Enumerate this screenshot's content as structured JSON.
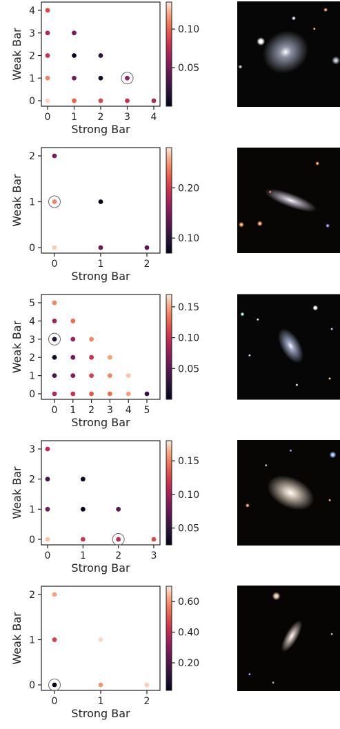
{
  "chart_data": [
    {
      "type": "scatter",
      "xlabel": "Strong Bar",
      "ylabel": "Weak Bar",
      "xlim": [
        0,
        4
      ],
      "ylim": [
        0,
        4
      ],
      "xticks": [
        "0",
        "1",
        "2",
        "3",
        "4"
      ],
      "yticks": [
        "0",
        "1",
        "2",
        "3",
        "4"
      ],
      "colorbar": {
        "min": 0.0,
        "max": 0.135,
        "ticks": [
          "0.05",
          "0.10"
        ],
        "tick_values": [
          0.05,
          0.1
        ]
      },
      "points": [
        {
          "x": 0,
          "y": 4,
          "value": 0.09
        },
        {
          "x": 0,
          "y": 3,
          "value": 0.07
        },
        {
          "x": 1,
          "y": 3,
          "value": 0.05
        },
        {
          "x": 0,
          "y": 2,
          "value": 0.08
        },
        {
          "x": 1,
          "y": 2,
          "value": 0.005
        },
        {
          "x": 2,
          "y": 2,
          "value": 0.02
        },
        {
          "x": 0,
          "y": 1,
          "value": 0.11
        },
        {
          "x": 1,
          "y": 1,
          "value": 0.05
        },
        {
          "x": 2,
          "y": 1,
          "value": 0.01
        },
        {
          "x": 3,
          "y": 1,
          "value": 0.06
        },
        {
          "x": 0,
          "y": 0,
          "value": 0.13
        },
        {
          "x": 1,
          "y": 0,
          "value": 0.1
        },
        {
          "x": 2,
          "y": 0,
          "value": 0.09
        },
        {
          "x": 3,
          "y": 0,
          "value": 0.08
        },
        {
          "x": 4,
          "y": 0,
          "value": 0.07
        }
      ],
      "highlight": {
        "x": 3,
        "y": 1
      },
      "image": {
        "bg": "#060606",
        "main_color": "#9a9eb2",
        "stars": [
          [
            0.23,
            0.38,
            6,
            "#ffffff"
          ],
          [
            0.55,
            0.16,
            3,
            "#d8e0ff"
          ],
          [
            0.86,
            0.08,
            3,
            "#ff9a80"
          ],
          [
            0.96,
            0.56,
            6,
            "#a0a6b8"
          ],
          [
            0.03,
            0.62,
            3,
            "#b8b0a0"
          ],
          [
            0.75,
            0.26,
            2,
            "#ffb080"
          ]
        ],
        "galaxy": [
          0.47,
          0.48,
          34,
          30,
          -30
        ]
      }
    },
    {
      "type": "scatter",
      "xlabel": "Strong Bar",
      "ylabel": "Weak Bar",
      "xlim": [
        0,
        2
      ],
      "ylim": [
        0,
        2
      ],
      "xticks": [
        "0",
        "1",
        "2"
      ],
      "yticks": [
        "0",
        "1",
        "2"
      ],
      "colorbar": {
        "min": 0.07,
        "max": 0.28,
        "ticks": [
          "0.10",
          "0.20"
        ],
        "tick_values": [
          0.1,
          0.2
        ]
      },
      "points": [
        {
          "x": 0,
          "y": 2,
          "value": 0.15
        },
        {
          "x": 0,
          "y": 1,
          "value": 0.24
        },
        {
          "x": 1,
          "y": 1,
          "value": 0.075
        },
        {
          "x": 0,
          "y": 0,
          "value": 0.27
        },
        {
          "x": 1,
          "y": 0,
          "value": 0.14
        },
        {
          "x": 2,
          "y": 0,
          "value": 0.13
        }
      ],
      "highlight": {
        "x": 0,
        "y": 1
      },
      "image": {
        "bg": "#070605",
        "main_color": "#c9c2d0",
        "stars": [
          [
            0.04,
            0.73,
            4,
            "#ff9a60"
          ],
          [
            0.22,
            0.72,
            4,
            "#ff9a60"
          ],
          [
            0.78,
            0.15,
            3,
            "#ff9050"
          ],
          [
            0.88,
            0.74,
            3,
            "#b090ff"
          ],
          [
            0.32,
            0.42,
            2,
            "#ff8060"
          ]
        ],
        "galaxy": [
          0.52,
          0.5,
          40,
          10,
          20
        ]
      }
    },
    {
      "type": "scatter",
      "xlabel": "Strong Bar",
      "ylabel": "Weak Bar",
      "xlim": [
        0,
        5
      ],
      "ylim": [
        0,
        5
      ],
      "xticks": [
        "0",
        "1",
        "2",
        "3",
        "4",
        "5"
      ],
      "yticks": [
        "0",
        "1",
        "2",
        "3",
        "4",
        "5"
      ],
      "colorbar": {
        "min": 0.0,
        "max": 0.17,
        "ticks": [
          "0.05",
          "0.10",
          "0.15"
        ],
        "tick_values": [
          0.05,
          0.1,
          0.15
        ]
      },
      "points": [
        {
          "x": 0,
          "y": 5,
          "value": 0.14
        },
        {
          "x": 0,
          "y": 4,
          "value": 0.08
        },
        {
          "x": 1,
          "y": 4,
          "value": 0.13
        },
        {
          "x": 0,
          "y": 3,
          "value": 0.02
        },
        {
          "x": 1,
          "y": 3,
          "value": 0.08
        },
        {
          "x": 2,
          "y": 3,
          "value": 0.14
        },
        {
          "x": 0,
          "y": 2,
          "value": 0.01
        },
        {
          "x": 1,
          "y": 2,
          "value": 0.06
        },
        {
          "x": 2,
          "y": 2,
          "value": 0.1
        },
        {
          "x": 3,
          "y": 2,
          "value": 0.15
        },
        {
          "x": 0,
          "y": 1,
          "value": 0.04
        },
        {
          "x": 1,
          "y": 1,
          "value": 0.07
        },
        {
          "x": 2,
          "y": 1,
          "value": 0.11
        },
        {
          "x": 3,
          "y": 1,
          "value": 0.14
        },
        {
          "x": 4,
          "y": 1,
          "value": 0.16
        },
        {
          "x": 0,
          "y": 0,
          "value": 0.09
        },
        {
          "x": 1,
          "y": 0,
          "value": 0.1
        },
        {
          "x": 2,
          "y": 0,
          "value": 0.12
        },
        {
          "x": 3,
          "y": 0,
          "value": 0.13
        },
        {
          "x": 4,
          "y": 0,
          "value": 0.15
        },
        {
          "x": 5,
          "y": 0,
          "value": 0.03
        }
      ],
      "highlight": {
        "x": 0,
        "y": 3
      },
      "image": {
        "bg": "#050605",
        "main_color": "#a9b4d4",
        "stars": [
          [
            0.05,
            0.19,
            3,
            "#b0ffd8"
          ],
          [
            0.76,
            0.13,
            4,
            "#ffffff"
          ],
          [
            0.2,
            0.24,
            2,
            "#ffffff"
          ],
          [
            0.92,
            0.33,
            2,
            "#c0d8ff"
          ],
          [
            0.58,
            0.86,
            2,
            "#ffffff"
          ],
          [
            0.9,
            0.8,
            2,
            "#ffd0b0"
          ],
          [
            0.12,
            0.58,
            2,
            "#c0e0ff"
          ]
        ],
        "galaxy": [
          0.52,
          0.49,
          14,
          28,
          -30
        ]
      }
    },
    {
      "type": "scatter",
      "xlabel": "Strong Bar",
      "ylabel": "Weak Bar",
      "xlim": [
        0,
        3
      ],
      "ylim": [
        0,
        3
      ],
      "xticks": [
        "0",
        "1",
        "2",
        "3"
      ],
      "yticks": [
        "0",
        "1",
        "2",
        "3"
      ],
      "colorbar": {
        "min": 0.025,
        "max": 0.18,
        "ticks": [
          "0.05",
          "0.10",
          "0.15"
        ],
        "tick_values": [
          0.05,
          0.1,
          0.15
        ]
      },
      "points": [
        {
          "x": 0,
          "y": 3,
          "value": 0.11
        },
        {
          "x": 0,
          "y": 2,
          "value": 0.06
        },
        {
          "x": 1,
          "y": 2,
          "value": 0.03
        },
        {
          "x": 0,
          "y": 1,
          "value": 0.08
        },
        {
          "x": 1,
          "y": 1,
          "value": 0.027
        },
        {
          "x": 2,
          "y": 1,
          "value": 0.07
        },
        {
          "x": 0,
          "y": 0,
          "value": 0.17
        },
        {
          "x": 1,
          "y": 0,
          "value": 0.12
        },
        {
          "x": 2,
          "y": 0,
          "value": 0.11
        },
        {
          "x": 3,
          "y": 0,
          "value": 0.13
        }
      ],
      "highlight": {
        "x": 2,
        "y": 0
      },
      "image": {
        "bg": "#080605",
        "main_color": "#e8d8c8",
        "stars": [
          [
            0.93,
            0.14,
            5,
            "#90b8ff"
          ],
          [
            0.1,
            0.62,
            3,
            "#ff9a80"
          ],
          [
            0.9,
            0.57,
            2,
            "#ffb090"
          ],
          [
            0.52,
            0.1,
            2,
            "#a090ff"
          ],
          [
            0.28,
            0.24,
            2,
            "#c0c0c0"
          ]
        ],
        "galaxy": [
          0.52,
          0.5,
          36,
          22,
          25
        ]
      }
    },
    {
      "type": "scatter",
      "xlabel": "Strong Bar",
      "ylabel": "Weak Bar",
      "xlim": [
        0,
        2
      ],
      "ylim": [
        0,
        2
      ],
      "xticks": [
        "0",
        "1",
        "2"
      ],
      "yticks": [
        "0",
        "1",
        "2"
      ],
      "colorbar": {
        "min": 0.02,
        "max": 0.7,
        "ticks": [
          "0.20",
          "0.40",
          "0.60"
        ],
        "tick_values": [
          0.2,
          0.4,
          0.6
        ]
      },
      "points": [
        {
          "x": 0,
          "y": 2,
          "value": 0.62
        },
        {
          "x": 0,
          "y": 1,
          "value": 0.45
        },
        {
          "x": 1,
          "y": 1,
          "value": 0.68
        },
        {
          "x": 0,
          "y": 0,
          "value": 0.02
        },
        {
          "x": 1,
          "y": 0,
          "value": 0.6
        },
        {
          "x": 2,
          "y": 0,
          "value": 0.67
        }
      ],
      "highlight": {
        "x": 0,
        "y": 0
      },
      "image": {
        "bg": "#060504",
        "main_color": "#e0d0c8",
        "stars": [
          [
            0.38,
            0.1,
            6,
            "#d8c0a0"
          ],
          [
            0.35,
            0.92,
            2,
            "#a0a0a0"
          ],
          [
            0.12,
            0.84,
            2,
            "#b090ff"
          ],
          [
            0.92,
            0.46,
            2,
            "#c0c0c0"
          ]
        ],
        "galaxy": [
          0.53,
          0.48,
          26,
          9,
          -60
        ]
      }
    }
  ]
}
